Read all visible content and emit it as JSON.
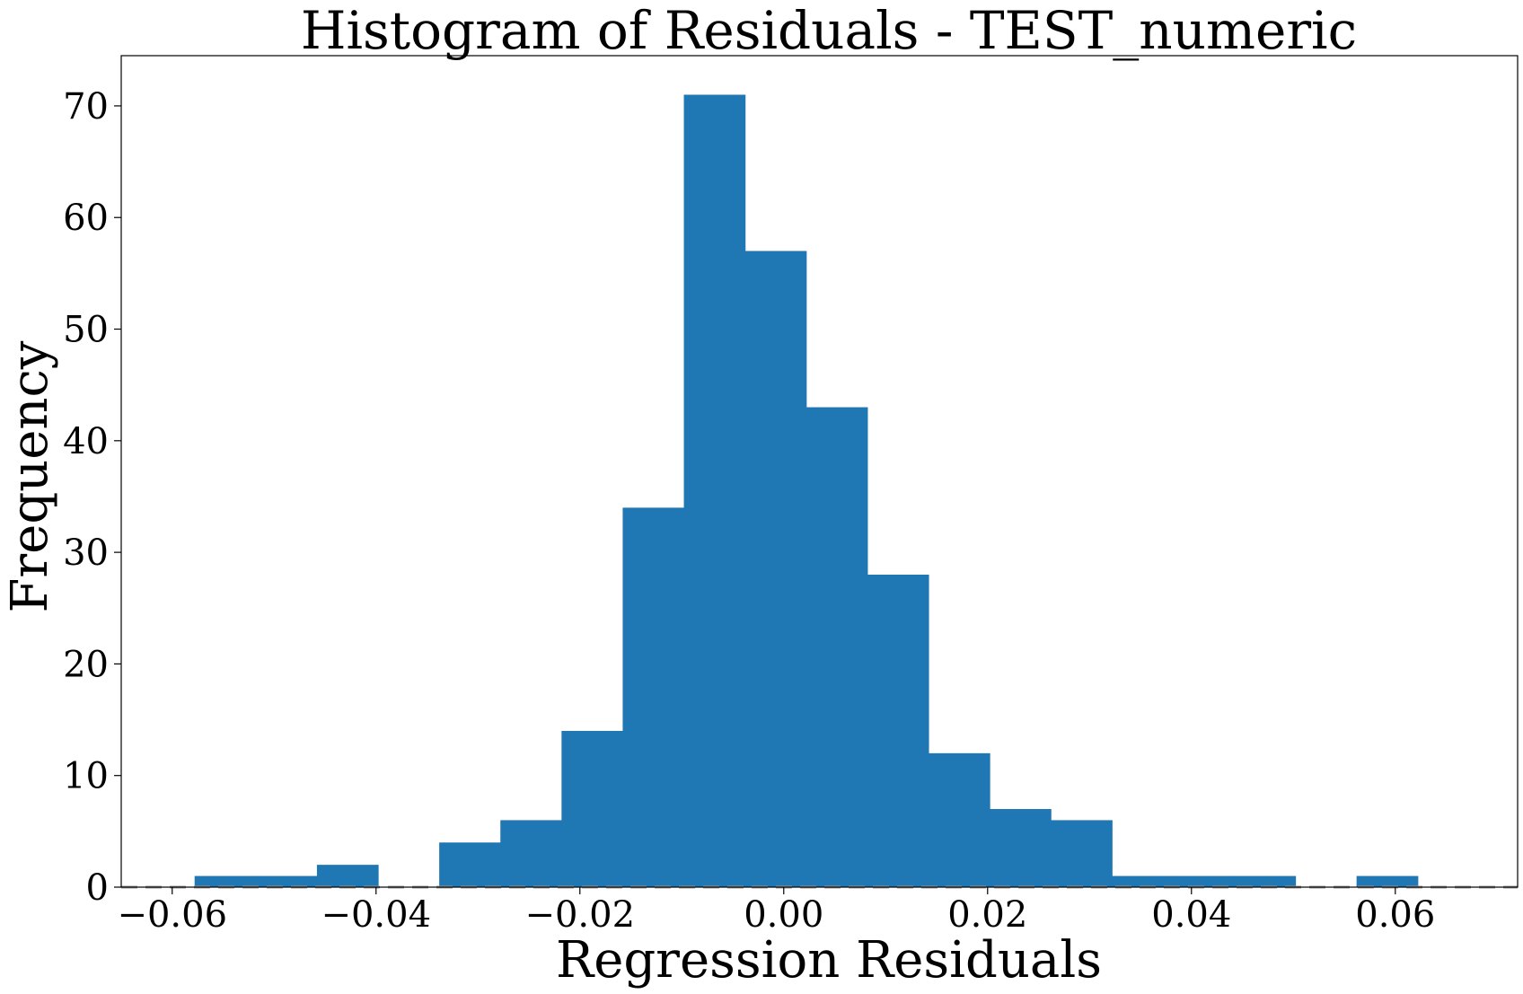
{
  "chart_data": {
    "type": "bar",
    "title": "Histogram of Residuals - TEST_numeric",
    "xlabel": "Regression Residuals",
    "ylabel": "Frequency",
    "xlim": [
      -0.065,
      0.072
    ],
    "ylim": [
      0,
      74.5
    ],
    "bar_color": "#1f77b4",
    "reference_line": {
      "y": 0,
      "color": "#999999",
      "style": "dashed"
    },
    "grid": false,
    "legend": "none",
    "bins": [
      {
        "x0": -0.0578,
        "x1": -0.0518,
        "count": 1
      },
      {
        "x0": -0.0518,
        "x1": -0.0458,
        "count": 1
      },
      {
        "x0": -0.0458,
        "x1": -0.0398,
        "count": 2
      },
      {
        "x0": -0.0398,
        "x1": -0.0338,
        "count": 0
      },
      {
        "x0": -0.0338,
        "x1": -0.0278,
        "count": 4
      },
      {
        "x0": -0.0278,
        "x1": -0.0218,
        "count": 6
      },
      {
        "x0": -0.0218,
        "x1": -0.0158,
        "count": 14
      },
      {
        "x0": -0.0158,
        "x1": -0.0098,
        "count": 34
      },
      {
        "x0": -0.0098,
        "x1": -0.0038,
        "count": 71
      },
      {
        "x0": -0.0038,
        "x1": 0.0022,
        "count": 57
      },
      {
        "x0": 0.0022,
        "x1": 0.0082,
        "count": 43
      },
      {
        "x0": 0.0082,
        "x1": 0.0142,
        "count": 28
      },
      {
        "x0": 0.0142,
        "x1": 0.0202,
        "count": 12
      },
      {
        "x0": 0.0202,
        "x1": 0.0262,
        "count": 7
      },
      {
        "x0": 0.0262,
        "x1": 0.0322,
        "count": 6
      },
      {
        "x0": 0.0322,
        "x1": 0.0382,
        "count": 1
      },
      {
        "x0": 0.0382,
        "x1": 0.0442,
        "count": 1
      },
      {
        "x0": 0.0442,
        "x1": 0.0502,
        "count": 1
      },
      {
        "x0": 0.0502,
        "x1": 0.0562,
        "count": 0
      },
      {
        "x0": 0.0562,
        "x1": 0.0622,
        "count": 1
      }
    ],
    "x_ticks": [
      {
        "value": -0.06,
        "label": "−0.06"
      },
      {
        "value": -0.04,
        "label": "−0.04"
      },
      {
        "value": -0.02,
        "label": "−0.02"
      },
      {
        "value": 0.0,
        "label": "0.00"
      },
      {
        "value": 0.02,
        "label": "0.02"
      },
      {
        "value": 0.04,
        "label": "0.04"
      },
      {
        "value": 0.06,
        "label": "0.06"
      }
    ],
    "y_ticks": [
      {
        "value": 0,
        "label": "0"
      },
      {
        "value": 10,
        "label": "10"
      },
      {
        "value": 20,
        "label": "20"
      },
      {
        "value": 30,
        "label": "30"
      },
      {
        "value": 40,
        "label": "40"
      },
      {
        "value": 50,
        "label": "50"
      },
      {
        "value": 60,
        "label": "60"
      },
      {
        "value": 70,
        "label": "70"
      }
    ]
  }
}
